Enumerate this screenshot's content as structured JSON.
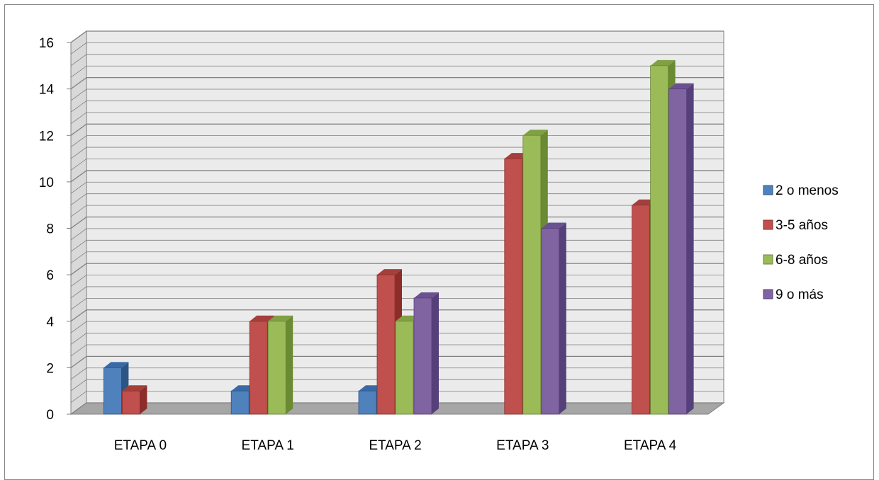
{
  "chart_data": {
    "type": "bar",
    "categories": [
      "ETAPA 0",
      "ETAPA 1",
      "ETAPA 2",
      "ETAPA 3",
      "ETAPA 4"
    ],
    "series": [
      {
        "name": "2 o menos",
        "values": [
          2,
          1,
          1,
          0,
          0
        ]
      },
      {
        "name": "3-5 años",
        "values": [
          1,
          4,
          6,
          11,
          9
        ]
      },
      {
        "name": "6-8 años",
        "values": [
          0,
          4,
          4,
          12,
          15
        ]
      },
      {
        "name": "9 o más",
        "values": [
          0,
          0,
          5,
          8,
          14
        ]
      }
    ],
    "y_ticks": [
      "0",
      "2",
      "4",
      "6",
      "8",
      "10",
      "12",
      "14",
      "16"
    ],
    "ylim": [
      0,
      16
    ],
    "minor_grid_step": 0.5,
    "grid": true,
    "legend_position": "right",
    "three_d": true
  },
  "colors": {
    "series_front": [
      "#4F81BD",
      "#C0504D",
      "#9BBB59",
      "#8064A2"
    ],
    "series_side": [
      "#2C5586",
      "#8C2D2A",
      "#6A8A33",
      "#55407A"
    ],
    "series_top": [
      "#3A6AA5",
      "#A53F3C",
      "#80A043",
      "#6A5190"
    ],
    "wall": "#EBEBEB",
    "side_wall": "#D9D9D9",
    "floor": "#A6A6A6",
    "grid": "#808080",
    "axis": "#808080"
  }
}
